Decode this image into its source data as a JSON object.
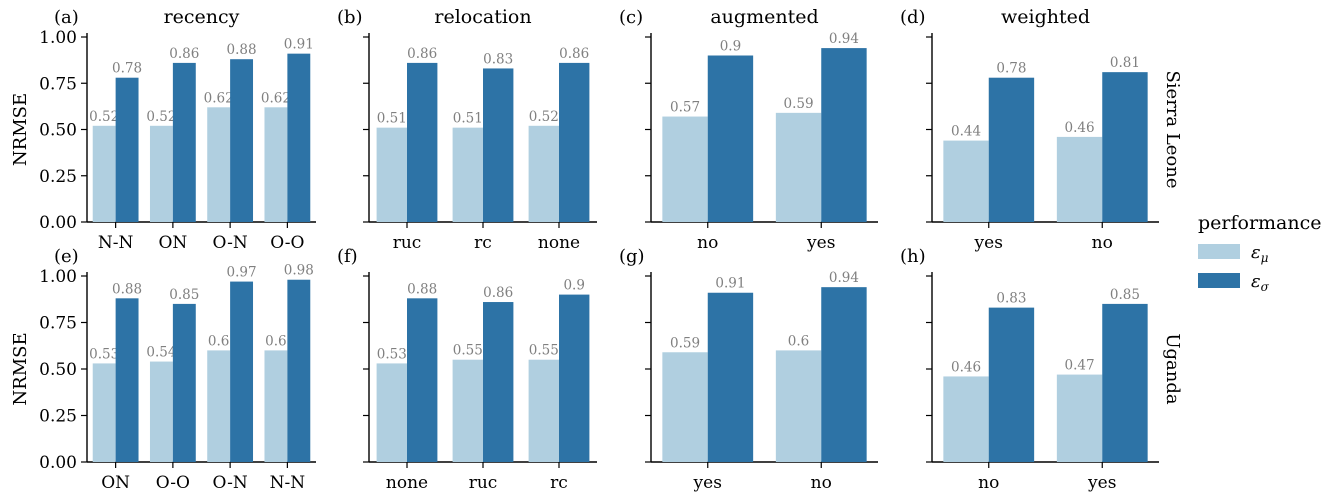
{
  "figure": {
    "ylabel": "NRMSE",
    "row_labels": [
      "Sierra Leone",
      "Uganda"
    ],
    "legend": {
      "title": "performance",
      "placement": "right",
      "entries": [
        {
          "series": "mu",
          "symbol": "ε",
          "subscript": "μ",
          "color": "#b0cfe0"
        },
        {
          "series": "sigma",
          "symbol": "ε",
          "subscript": "σ",
          "color": "#2d73a6"
        }
      ]
    },
    "colors": {
      "mu": "#b0cfe0",
      "sigma": "#2d73a6",
      "value_label": "#808080",
      "axis": "#000000"
    }
  },
  "chart_data": [
    {
      "panel": "(a)",
      "title": "recency",
      "row": 0,
      "col": 0,
      "type": "bar",
      "categories": [
        "N-N",
        "ON",
        "O-N",
        "O-O"
      ],
      "ylim": [
        0,
        1.0
      ],
      "yticks": [
        "0.00",
        "0.25",
        "0.50",
        "0.75",
        "1.00"
      ],
      "series": [
        {
          "key": "mu",
          "values": [
            0.52,
            0.52,
            0.62,
            0.62
          ]
        },
        {
          "key": "sigma",
          "values": [
            0.78,
            0.86,
            0.88,
            0.91
          ]
        }
      ]
    },
    {
      "panel": "(b)",
      "title": "relocation",
      "row": 0,
      "col": 1,
      "type": "bar",
      "categories": [
        "ruc",
        "rc",
        "none"
      ],
      "ylim": [
        0,
        1.0
      ],
      "series": [
        {
          "key": "mu",
          "values": [
            0.51,
            0.51,
            0.52
          ]
        },
        {
          "key": "sigma",
          "values": [
            0.86,
            0.83,
            0.86
          ]
        }
      ]
    },
    {
      "panel": "(c)",
      "title": "augmented",
      "row": 0,
      "col": 2,
      "type": "bar",
      "categories": [
        "no",
        "yes"
      ],
      "ylim": [
        0,
        1.0
      ],
      "series": [
        {
          "key": "mu",
          "values": [
            0.57,
            0.59
          ]
        },
        {
          "key": "sigma",
          "values": [
            0.9,
            0.94
          ]
        }
      ]
    },
    {
      "panel": "(d)",
      "title": "weighted",
      "row": 0,
      "col": 3,
      "type": "bar",
      "categories": [
        "yes",
        "no"
      ],
      "ylim": [
        0,
        1.0
      ],
      "series": [
        {
          "key": "mu",
          "values": [
            0.44,
            0.46
          ]
        },
        {
          "key": "sigma",
          "values": [
            0.78,
            0.81
          ]
        }
      ]
    },
    {
      "panel": "(e)",
      "title": "",
      "row": 1,
      "col": 0,
      "type": "bar",
      "categories": [
        "ON",
        "O-O",
        "O-N",
        "N-N"
      ],
      "ylim": [
        0,
        1.0
      ],
      "yticks": [
        "0.00",
        "0.25",
        "0.50",
        "0.75",
        "1.00"
      ],
      "series": [
        {
          "key": "mu",
          "values": [
            0.53,
            0.54,
            0.6,
            0.6
          ]
        },
        {
          "key": "sigma",
          "values": [
            0.88,
            0.85,
            0.97,
            0.98
          ]
        }
      ]
    },
    {
      "panel": "(f)",
      "title": "",
      "row": 1,
      "col": 1,
      "type": "bar",
      "categories": [
        "none",
        "ruc",
        "rc"
      ],
      "ylim": [
        0,
        1.0
      ],
      "series": [
        {
          "key": "mu",
          "values": [
            0.53,
            0.55,
            0.55
          ]
        },
        {
          "key": "sigma",
          "values": [
            0.88,
            0.86,
            0.9
          ]
        }
      ]
    },
    {
      "panel": "(g)",
      "title": "",
      "row": 1,
      "col": 2,
      "type": "bar",
      "categories": [
        "yes",
        "no"
      ],
      "ylim": [
        0,
        1.0
      ],
      "series": [
        {
          "key": "mu",
          "values": [
            0.59,
            0.6
          ]
        },
        {
          "key": "sigma",
          "values": [
            0.91,
            0.94
          ]
        }
      ]
    },
    {
      "panel": "(h)",
      "title": "",
      "row": 1,
      "col": 3,
      "type": "bar",
      "categories": [
        "no",
        "yes"
      ],
      "ylim": [
        0,
        1.0
      ],
      "series": [
        {
          "key": "mu",
          "values": [
            0.46,
            0.47
          ]
        },
        {
          "key": "sigma",
          "values": [
            0.83,
            0.85
          ]
        }
      ]
    }
  ]
}
